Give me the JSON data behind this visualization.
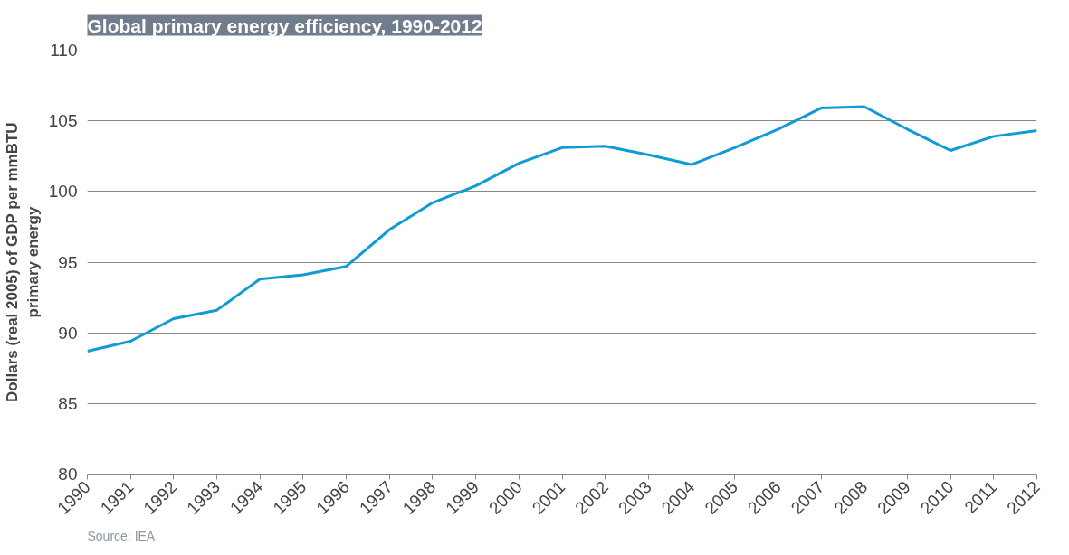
{
  "chart_data": {
    "type": "line",
    "title": "Global primary energy efficiency, 1990-2012",
    "ylabel": "Dollars (real 2005) of GDP per mmBTU\nprimary energy",
    "categories": [
      "1990",
      "1991",
      "1992",
      "1993",
      "1994",
      "1995",
      "1996",
      "1997",
      "1998",
      "1999",
      "2000",
      "2001",
      "2002",
      "2003",
      "2004",
      "2005",
      "2006",
      "2007",
      "2008",
      "2009",
      "2010",
      "2011",
      "2012"
    ],
    "series": [
      {
        "color": "#109bd7",
        "values": [
          88.7,
          89.4,
          91.0,
          91.6,
          93.8,
          94.1,
          94.7,
          97.3,
          99.2,
          100.4,
          102.0,
          103.1,
          103.2,
          102.6,
          101.9,
          103.1,
          104.4,
          105.9,
          106.0,
          104.4,
          102.9,
          103.9,
          104.3
        ]
      }
    ],
    "ylim": [
      80,
      110
    ],
    "yticks": [
      80,
      85,
      90,
      95,
      100,
      105,
      110
    ],
    "grid": "y",
    "annotations": [
      "Source: IEA"
    ]
  }
}
